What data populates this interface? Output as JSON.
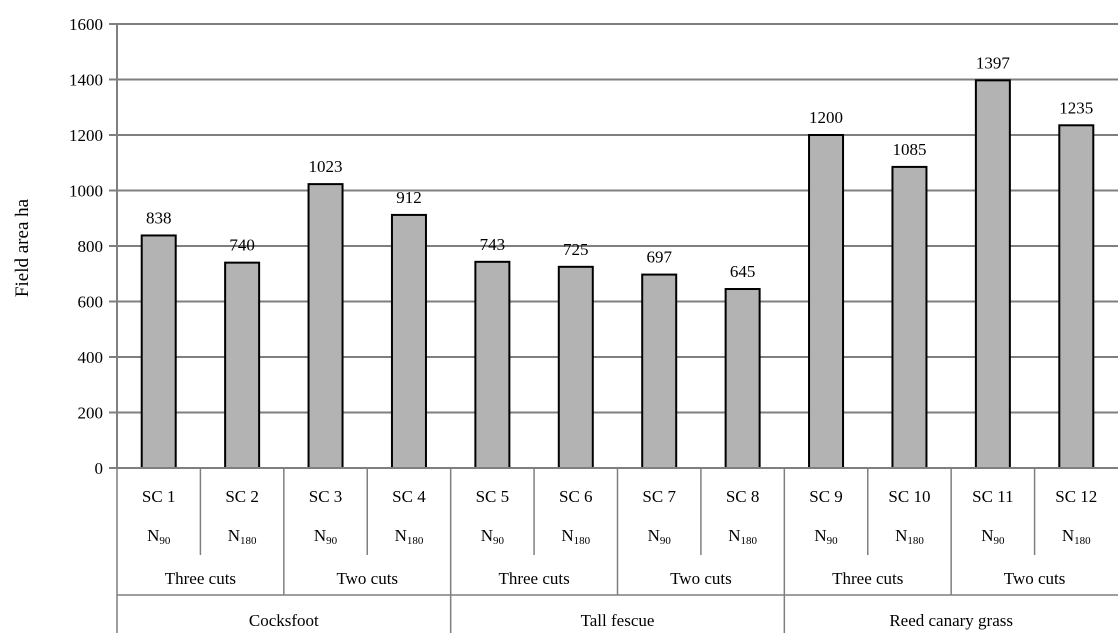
{
  "chart_data": {
    "type": "bar",
    "ylabel": "Field area ha",
    "ylim": [
      0,
      1600
    ],
    "yticks": [
      "0",
      "200",
      "400",
      "600",
      "800",
      "1000",
      "1200",
      "1400",
      "1600"
    ],
    "grid": true,
    "legend": "none",
    "bar_color": "#b3b3b3",
    "categories": [
      {
        "id": "SC1",
        "label": "SC 1",
        "n_base": "N",
        "n_sub": "90",
        "value": 838
      },
      {
        "id": "SC2",
        "label": "SC 2",
        "n_base": "N",
        "n_sub": "180",
        "value": 740
      },
      {
        "id": "SC3",
        "label": "SC 3",
        "n_base": "N",
        "n_sub": "90",
        "value": 1023
      },
      {
        "id": "SC4",
        "label": "SC 4",
        "n_base": "N",
        "n_sub": "180",
        "value": 912
      },
      {
        "id": "SC5",
        "label": "SC 5",
        "n_base": "N",
        "n_sub": "90",
        "value": 743
      },
      {
        "id": "SC6",
        "label": "SC 6",
        "n_base": "N",
        "n_sub": "180",
        "value": 725
      },
      {
        "id": "SC7",
        "label": "SC 7",
        "n_base": "N",
        "n_sub": "90",
        "value": 697
      },
      {
        "id": "SC8",
        "label": "SC 8",
        "n_base": "N",
        "n_sub": "180",
        "value": 645
      },
      {
        "id": "SC9",
        "label": "SC 9",
        "n_base": "N",
        "n_sub": "90",
        "value": 1200
      },
      {
        "id": "SC10",
        "label": "SC 10",
        "n_base": "N",
        "n_sub": "180",
        "value": 1085
      },
      {
        "id": "SC11",
        "label": "SC 11",
        "n_base": "N",
        "n_sub": "90",
        "value": 1397
      },
      {
        "id": "SC12",
        "label": "SC 12",
        "n_base": "N",
        "n_sub": "180",
        "value": 1235
      }
    ],
    "cut_groups": [
      "Three cuts",
      "Two cuts",
      "Three cuts",
      "Two cuts",
      "Three cuts",
      "Two cuts"
    ],
    "species_groups": [
      "Cocksfoot",
      "Tall fescue",
      "Reed canary grass"
    ]
  }
}
